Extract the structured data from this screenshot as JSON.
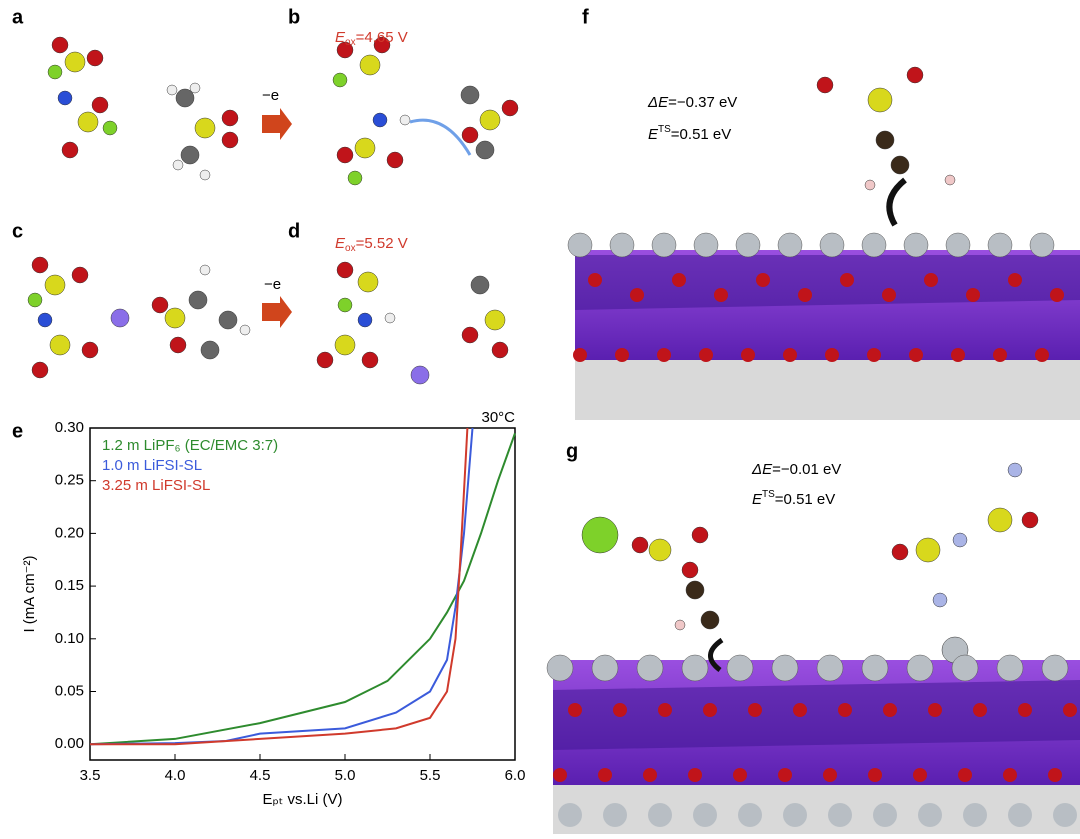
{
  "panels": {
    "a": {
      "label": "a"
    },
    "b": {
      "label": "b",
      "eox": {
        "main": "E",
        "sub": "ox",
        "rest": "=4.65 V"
      },
      "arrow": "−e"
    },
    "c": {
      "label": "c"
    },
    "d": {
      "label": "d",
      "eox": {
        "main": "E",
        "sub": "ox",
        "rest": "=5.52 V"
      },
      "arrow": "−e"
    },
    "e": {
      "label": "e"
    },
    "f": {
      "label": "f",
      "de": {
        "main": "ΔE",
        "rest": "=−0.37 eV"
      },
      "ets": {
        "main": "E",
        "sup": "TS",
        "rest": "=0.51 eV"
      }
    },
    "g": {
      "label": "g",
      "de": {
        "main": "ΔE",
        "rest": "=−0.01 eV"
      },
      "ets": {
        "main": "E",
        "sup": "TS",
        "rest": "=0.51 eV"
      }
    }
  },
  "chart_data": {
    "type": "line",
    "xlabel": "Eₚₜ vs.Li (V)",
    "ylabel": "I (mA cm⁻²)",
    "annotation": "30°C",
    "xlim": [
      3.5,
      6.0
    ],
    "ylim": [
      -0.015,
      0.3
    ],
    "xticks": [
      3.5,
      {
        "value": 4.0,
        "label": "4.0"
      },
      4.5,
      {
        "value": 5.0,
        "label": "5.0"
      },
      5.5,
      {
        "value": 6.0,
        "label": "6.0"
      }
    ],
    "yticks": [
      {
        "value": 0,
        "label": "0.00"
      },
      0.05,
      {
        "value": 0.1,
        "label": "0.10"
      },
      0.15,
      {
        "value": 0.2,
        "label": "0.20"
      },
      0.25,
      {
        "value": 0.3,
        "label": "0.30"
      }
    ],
    "series": [
      {
        "name": "1.2 m LiPF₆ (EC/EMC 3:7)",
        "color": "#2e8b2e",
        "x": [
          3.5,
          4.0,
          4.5,
          5.0,
          5.25,
          5.5,
          5.6,
          5.7,
          5.8,
          5.9,
          6.0
        ],
        "values": [
          0.0,
          0.005,
          0.02,
          0.04,
          0.06,
          0.1,
          0.125,
          0.155,
          0.2,
          0.25,
          0.295
        ]
      },
      {
        "name": "1.0 m LiFSI-SL",
        "color": "#3b5bdb",
        "x": [
          3.5,
          4.0,
          4.3,
          4.5,
          5.0,
          5.3,
          5.5,
          5.6,
          5.65,
          5.7,
          5.75
        ],
        "values": [
          0.0,
          0.001,
          0.003,
          0.01,
          0.015,
          0.03,
          0.05,
          0.08,
          0.13,
          0.2,
          0.3
        ]
      },
      {
        "name": "3.25 m LiFSI-SL",
        "color": "#d03a2c",
        "x": [
          3.5,
          4.0,
          4.5,
          5.0,
          5.3,
          5.5,
          5.6,
          5.65,
          5.68,
          5.72
        ],
        "values": [
          0.0,
          0.0,
          0.005,
          0.01,
          0.015,
          0.025,
          0.05,
          0.1,
          0.18,
          0.3
        ]
      }
    ]
  }
}
